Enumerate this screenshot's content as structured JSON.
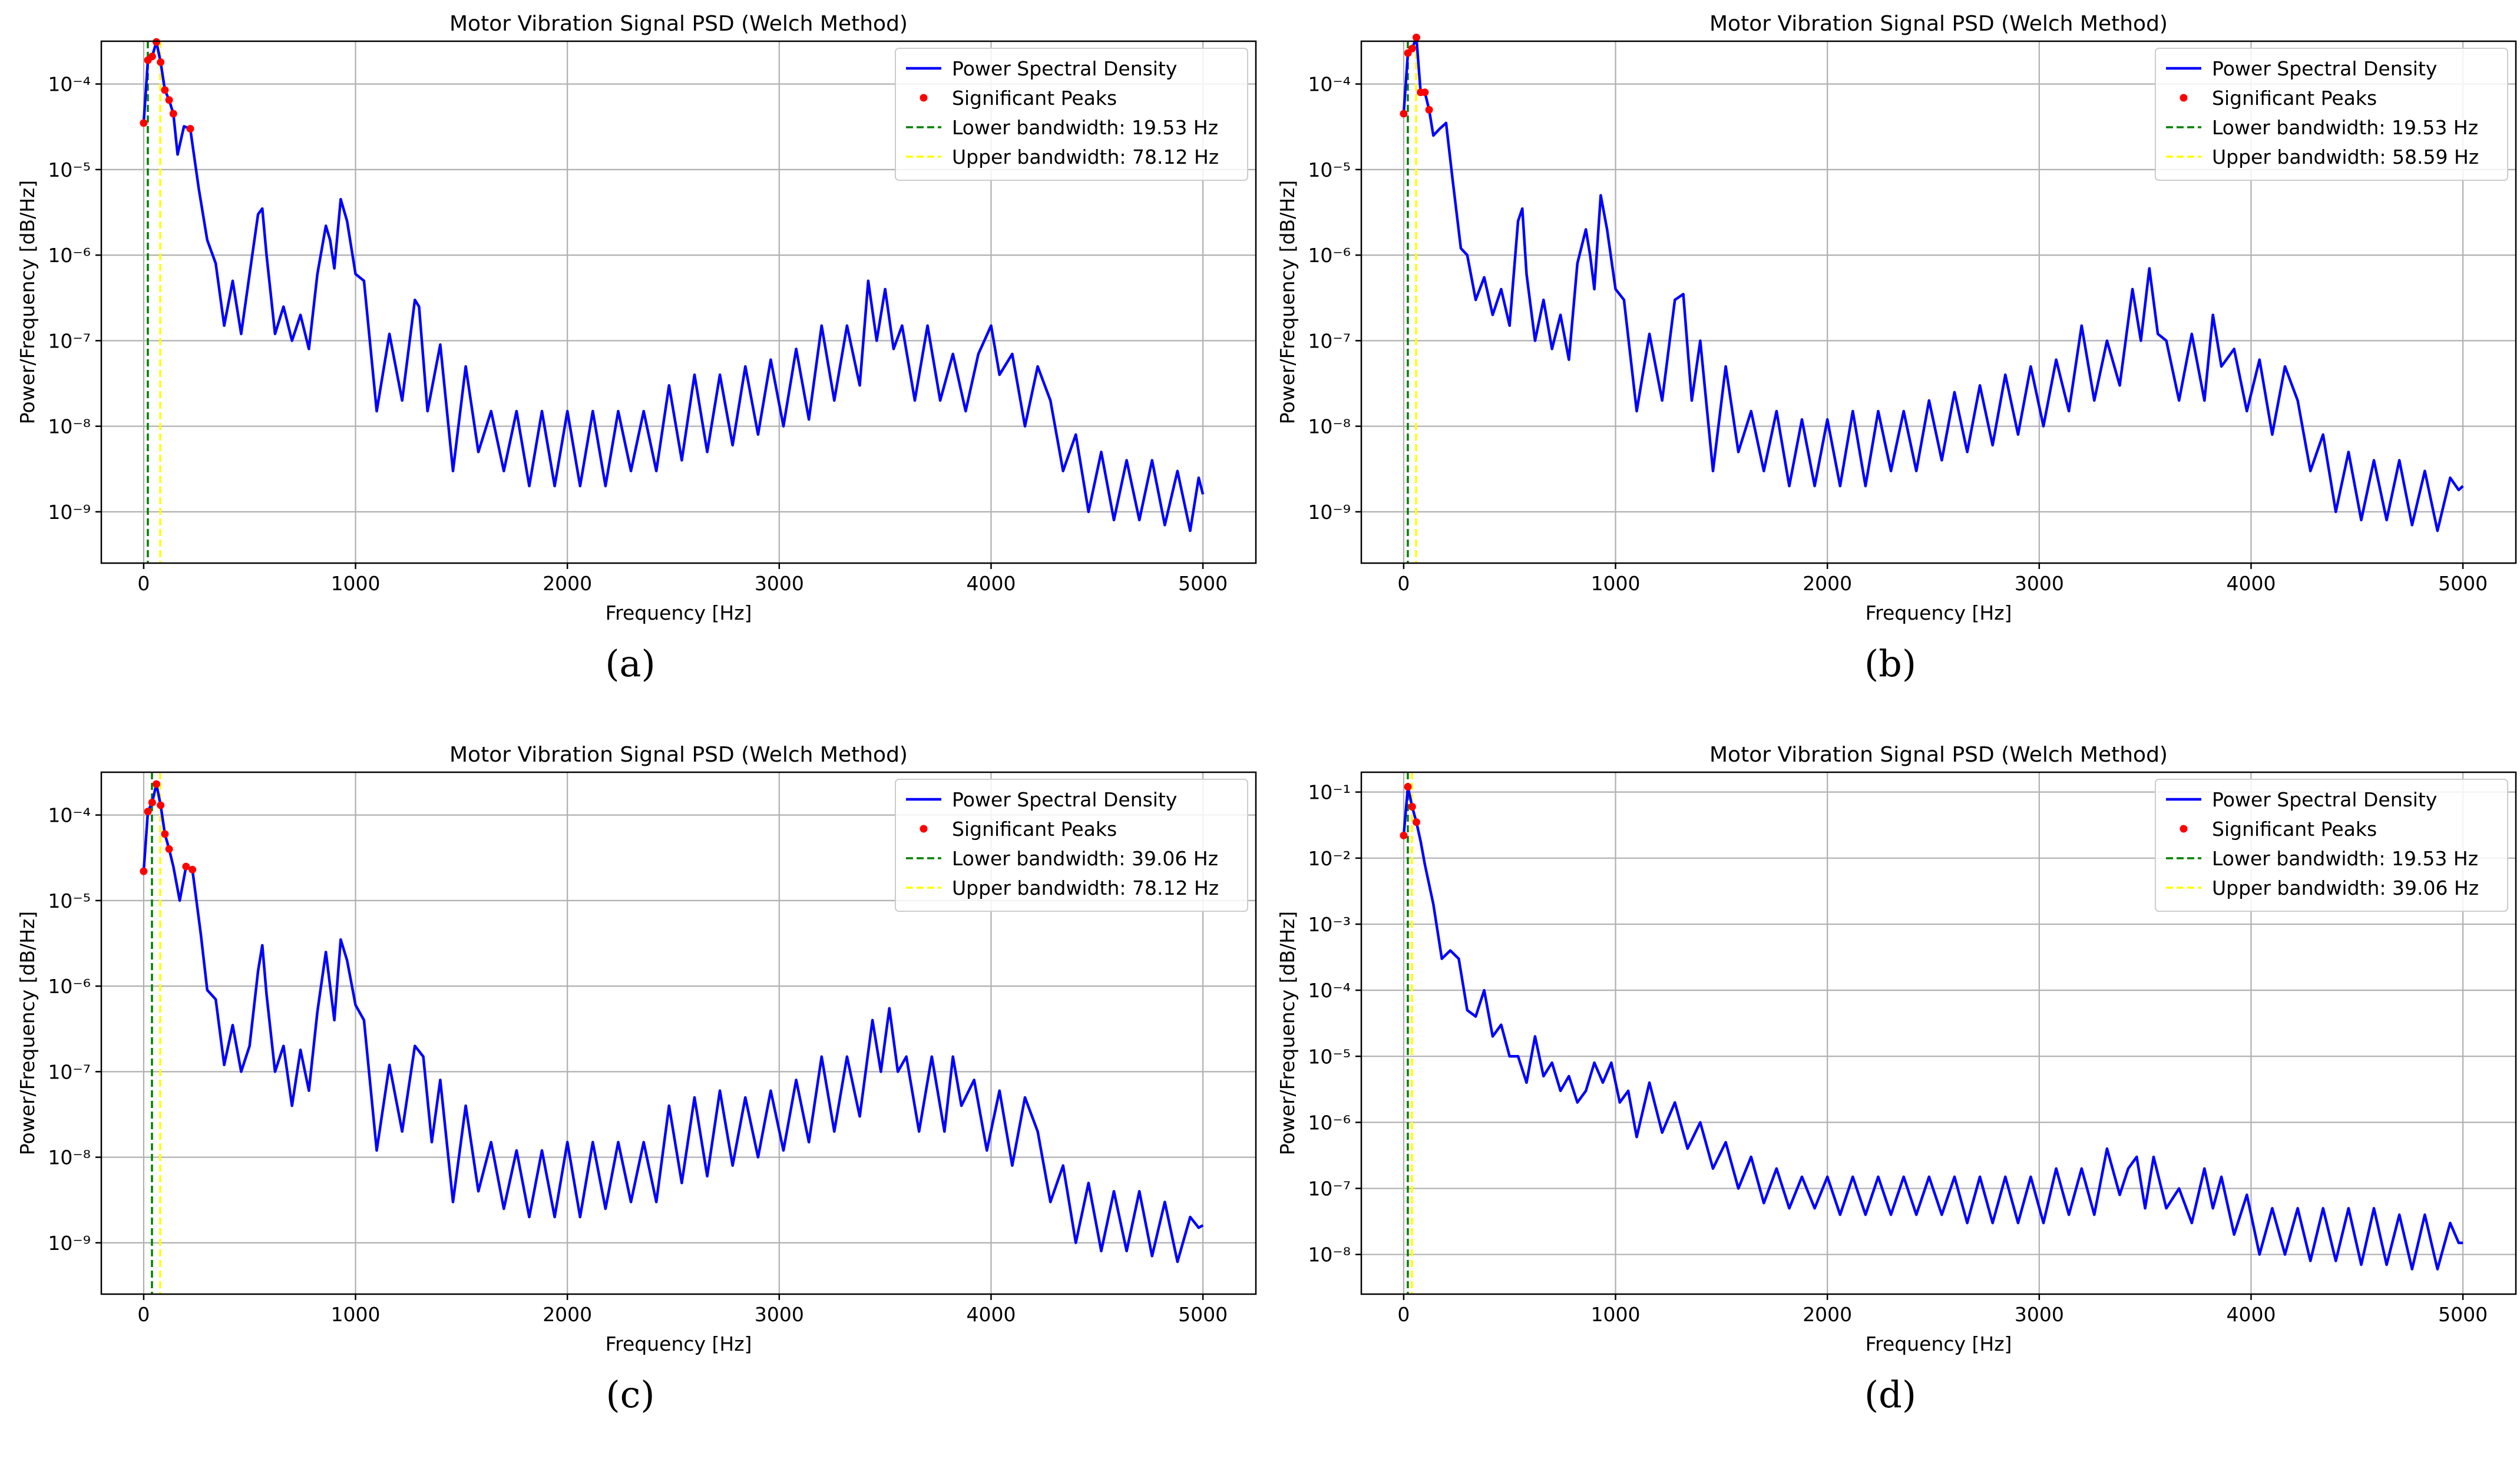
{
  "figure": {
    "colors": {
      "psd": "#0000ff",
      "peaks": "#ff0000",
      "lower_band": "#008000",
      "upper_band": "#ffff00",
      "grid": "#b0b0b0"
    }
  },
  "chart_data": [
    {
      "id": "a",
      "sub_label": "(a)",
      "type": "line",
      "yscale": "log",
      "title": "Motor Vibration Signal PSD (Welch Method)",
      "xlabel": "Frequency [Hz]",
      "ylabel": "Power/Frequency [dB/Hz]",
      "xlim": [
        -200,
        5250
      ],
      "ylim_exp": [
        -9.6,
        -3.5
      ],
      "xticks": [
        0,
        1000,
        2000,
        3000,
        4000,
        5000
      ],
      "xtick_labels": [
        "0",
        "1000",
        "2000",
        "3000",
        "4000",
        "5000"
      ],
      "yticks_exp": [
        -4,
        -5,
        -6,
        -7,
        -8,
        -9
      ],
      "legend": {
        "position": "upper right",
        "psd": "Power Spectral Density",
        "peaks": "Significant Peaks",
        "lower": "Lower bandwidth: 19.53 Hz",
        "upper": "Upper bandwidth: 78.12 Hz"
      },
      "lower_bandwidth_hz": 19.53,
      "upper_bandwidth_hz": 78.12,
      "series": {
        "name": "Power Spectral Density",
        "freq_hz": [
          0,
          20,
          40,
          60,
          80,
          100,
          120,
          140,
          160,
          190,
          220,
          260,
          300,
          340,
          380,
          420,
          460,
          500,
          540,
          560,
          580,
          620,
          660,
          700,
          740,
          780,
          820,
          860,
          880,
          900,
          930,
          960,
          1000,
          1040,
          1100,
          1160,
          1220,
          1280,
          1300,
          1340,
          1400,
          1460,
          1520,
          1580,
          1640,
          1700,
          1760,
          1820,
          1880,
          1940,
          2000,
          2060,
          2120,
          2180,
          2240,
          2300,
          2360,
          2420,
          2480,
          2540,
          2600,
          2660,
          2720,
          2780,
          2840,
          2900,
          2960,
          3020,
          3080,
          3140,
          3200,
          3260,
          3320,
          3380,
          3420,
          3460,
          3500,
          3540,
          3580,
          3640,
          3700,
          3760,
          3820,
          3880,
          3940,
          4000,
          4040,
          4100,
          4160,
          4220,
          4280,
          4340,
          4400,
          4460,
          4520,
          4580,
          4640,
          4700,
          4760,
          4820,
          4880,
          4940,
          4980,
          5000
        ],
        "psd": [
          3.5e-05,
          0.00019,
          0.00021,
          0.00031,
          0.00018,
          8.5e-05,
          6.5e-05,
          4.5e-05,
          1.5e-05,
          3.2e-05,
          3e-05,
          6e-06,
          1.5e-06,
          8e-07,
          1.5e-07,
          5e-07,
          1.2e-07,
          6e-07,
          3e-06,
          3.5e-06,
          1e-06,
          1.2e-07,
          2.5e-07,
          1e-07,
          2e-07,
          8e-08,
          6e-07,
          2.2e-06,
          1.5e-06,
          7e-07,
          4.5e-06,
          2.5e-06,
          6e-07,
          5e-07,
          1.5e-08,
          1.2e-07,
          2e-08,
          3e-07,
          2.5e-07,
          1.5e-08,
          9e-08,
          3e-09,
          5e-08,
          5e-09,
          1.5e-08,
          3e-09,
          1.5e-08,
          2e-09,
          1.5e-08,
          2e-09,
          1.5e-08,
          2e-09,
          1.5e-08,
          2e-09,
          1.5e-08,
          3e-09,
          1.5e-08,
          3e-09,
          3e-08,
          4e-09,
          4e-08,
          5e-09,
          4e-08,
          6e-09,
          5e-08,
          8e-09,
          6e-08,
          1e-08,
          8e-08,
          1.2e-08,
          1.5e-07,
          2e-08,
          1.5e-07,
          3e-08,
          5e-07,
          1e-07,
          4e-07,
          8e-08,
          1.5e-07,
          2e-08,
          1.5e-07,
          2e-08,
          7e-08,
          1.5e-08,
          7e-08,
          1.5e-07,
          4e-08,
          7e-08,
          1e-08,
          5e-08,
          2e-08,
          3e-09,
          8e-09,
          1e-09,
          5e-09,
          8e-10,
          4e-09,
          8e-10,
          4e-09,
          7e-10,
          3e-09,
          6e-10,
          2.5e-09,
          1.6e-09
        ]
      },
      "peaks": {
        "name": "Significant Peaks",
        "freq_hz": [
          0,
          20,
          40,
          60,
          80,
          100,
          120,
          140,
          220
        ],
        "psd": [
          3.5e-05,
          0.00019,
          0.00021,
          0.00031,
          0.00018,
          8.5e-05,
          6.5e-05,
          4.5e-05,
          3e-05
        ]
      }
    },
    {
      "id": "b",
      "sub_label": "(b)",
      "type": "line",
      "yscale": "log",
      "title": "Motor Vibration Signal PSD (Welch Method)",
      "xlabel": "Frequency [Hz]",
      "ylabel": "Power/Frequency [dB/Hz]",
      "xlim": [
        -200,
        5250
      ],
      "ylim_exp": [
        -9.6,
        -3.5
      ],
      "xticks": [
        0,
        1000,
        2000,
        3000,
        4000,
        5000
      ],
      "xtick_labels": [
        "0",
        "1000",
        "2000",
        "3000",
        "4000",
        "5000"
      ],
      "yticks_exp": [
        -4,
        -5,
        -6,
        -7,
        -8,
        -9
      ],
      "legend": {
        "position": "upper right",
        "psd": "Power Spectral Density",
        "peaks": "Significant Peaks",
        "lower": "Lower bandwidth: 19.53 Hz",
        "upper": "Upper bandwidth: 58.59 Hz"
      },
      "lower_bandwidth_hz": 19.53,
      "upper_bandwidth_hz": 58.59,
      "series": {
        "name": "Power Spectral Density",
        "freq_hz": [
          0,
          20,
          40,
          60,
          80,
          100,
          120,
          140,
          170,
          200,
          230,
          270,
          300,
          340,
          380,
          420,
          460,
          500,
          540,
          560,
          580,
          620,
          660,
          700,
          740,
          780,
          820,
          860,
          880,
          900,
          930,
          960,
          1000,
          1040,
          1100,
          1160,
          1220,
          1280,
          1320,
          1360,
          1400,
          1460,
          1520,
          1580,
          1640,
          1700,
          1760,
          1820,
          1880,
          1940,
          2000,
          2060,
          2120,
          2180,
          2240,
          2300,
          2360,
          2420,
          2480,
          2540,
          2600,
          2660,
          2720,
          2780,
          2840,
          2900,
          2960,
          3020,
          3080,
          3140,
          3200,
          3260,
          3320,
          3380,
          3440,
          3480,
          3520,
          3560,
          3600,
          3660,
          3720,
          3780,
          3820,
          3860,
          3920,
          3980,
          4040,
          4100,
          4160,
          4220,
          4280,
          4340,
          4400,
          4460,
          4520,
          4580,
          4640,
          4700,
          4760,
          4820,
          4880,
          4940,
          4980,
          5000
        ],
        "psd": [
          4.5e-05,
          0.00023,
          0.00026,
          0.00035,
          8e-05,
          8e-05,
          5e-05,
          2.5e-05,
          3e-05,
          3.5e-05,
          8e-06,
          1.2e-06,
          1e-06,
          3e-07,
          5.5e-07,
          2e-07,
          4e-07,
          1.5e-07,
          2.5e-06,
          3.5e-06,
          6e-07,
          1e-07,
          3e-07,
          8e-08,
          2e-07,
          6e-08,
          8e-07,
          2e-06,
          1e-06,
          4e-07,
          5e-06,
          2e-06,
          4e-07,
          3e-07,
          1.5e-08,
          1.2e-07,
          2e-08,
          3e-07,
          3.5e-07,
          2e-08,
          1e-07,
          3e-09,
          5e-08,
          5e-09,
          1.5e-08,
          3e-09,
          1.5e-08,
          2e-09,
          1.2e-08,
          2e-09,
          1.2e-08,
          2e-09,
          1.5e-08,
          2e-09,
          1.5e-08,
          3e-09,
          1.5e-08,
          3e-09,
          2e-08,
          4e-09,
          2.5e-08,
          5e-09,
          3e-08,
          6e-09,
          4e-08,
          8e-09,
          5e-08,
          1e-08,
          6e-08,
          1.5e-08,
          1.5e-07,
          2e-08,
          1e-07,
          3e-08,
          4e-07,
          1e-07,
          7e-07,
          1.2e-07,
          1e-07,
          2e-08,
          1.2e-07,
          2e-08,
          2e-07,
          5e-08,
          8e-08,
          1.5e-08,
          6e-08,
          8e-09,
          5e-08,
          2e-08,
          3e-09,
          8e-09,
          1e-09,
          5e-09,
          8e-10,
          4e-09,
          8e-10,
          4e-09,
          7e-10,
          3e-09,
          6e-10,
          2.5e-09,
          1.8e-09,
          2e-09
        ]
      },
      "peaks": {
        "name": "Significant Peaks",
        "freq_hz": [
          0,
          20,
          40,
          60,
          80,
          100,
          120
        ],
        "psd": [
          4.5e-05,
          0.00023,
          0.00026,
          0.00035,
          8e-05,
          8e-05,
          5e-05
        ]
      }
    },
    {
      "id": "c",
      "sub_label": "(c)",
      "type": "line",
      "yscale": "log",
      "title": "Motor Vibration Signal PSD (Welch Method)",
      "xlabel": "Frequency [Hz]",
      "ylabel": "Power/Frequency [dB/Hz]",
      "xlim": [
        -200,
        5250
      ],
      "ylim_exp": [
        -9.6,
        -3.5
      ],
      "xticks": [
        0,
        1000,
        2000,
        3000,
        4000,
        5000
      ],
      "xtick_labels": [
        "0",
        "1000",
        "2000",
        "3000",
        "4000",
        "5000"
      ],
      "yticks_exp": [
        -4,
        -5,
        -6,
        -7,
        -8,
        -9
      ],
      "legend": {
        "position": "upper right",
        "psd": "Power Spectral Density",
        "peaks": "Significant Peaks",
        "lower": "Lower bandwidth: 39.06 Hz",
        "upper": "Upper bandwidth: 78.12 Hz"
      },
      "lower_bandwidth_hz": 39.06,
      "upper_bandwidth_hz": 78.12,
      "series": {
        "name": "Power Spectral Density",
        "freq_hz": [
          0,
          20,
          40,
          60,
          80,
          100,
          120,
          140,
          170,
          200,
          230,
          270,
          300,
          340,
          380,
          420,
          460,
          500,
          540,
          560,
          580,
          620,
          660,
          700,
          740,
          780,
          820,
          860,
          880,
          900,
          930,
          960,
          1000,
          1040,
          1100,
          1160,
          1220,
          1280,
          1320,
          1360,
          1400,
          1460,
          1520,
          1580,
          1640,
          1700,
          1760,
          1820,
          1880,
          1940,
          2000,
          2060,
          2120,
          2180,
          2240,
          2300,
          2360,
          2420,
          2480,
          2540,
          2600,
          2660,
          2720,
          2780,
          2840,
          2900,
          2960,
          3020,
          3080,
          3140,
          3200,
          3260,
          3320,
          3380,
          3440,
          3480,
          3520,
          3560,
          3600,
          3660,
          3720,
          3780,
          3820,
          3860,
          3920,
          3980,
          4040,
          4100,
          4160,
          4220,
          4280,
          4340,
          4400,
          4460,
          4520,
          4580,
          4640,
          4700,
          4760,
          4820,
          4880,
          4940,
          4980,
          5000
        ],
        "psd": [
          2.2e-05,
          0.00011,
          0.00014,
          0.00023,
          0.00013,
          6e-05,
          4e-05,
          2.5e-05,
          1e-05,
          2.5e-05,
          2.3e-05,
          4e-06,
          9e-07,
          7e-07,
          1.2e-07,
          3.5e-07,
          1e-07,
          2e-07,
          1.5e-06,
          3e-06,
          8e-07,
          1e-07,
          2e-07,
          4e-08,
          1.8e-07,
          6e-08,
          5e-07,
          2.5e-06,
          1e-06,
          4e-07,
          3.5e-06,
          2e-06,
          6e-07,
          4e-07,
          1.2e-08,
          1.2e-07,
          2e-08,
          2e-07,
          1.5e-07,
          1.5e-08,
          8e-08,
          3e-09,
          4e-08,
          4e-09,
          1.5e-08,
          2.5e-09,
          1.2e-08,
          2e-09,
          1.2e-08,
          2e-09,
          1.5e-08,
          2e-09,
          1.5e-08,
          2.5e-09,
          1.5e-08,
          3e-09,
          1.5e-08,
          3e-09,
          4e-08,
          5e-09,
          5e-08,
          6e-09,
          6e-08,
          8e-09,
          5e-08,
          1e-08,
          6e-08,
          1.2e-08,
          8e-08,
          1.5e-08,
          1.5e-07,
          2e-08,
          1.5e-07,
          3e-08,
          4e-07,
          1e-07,
          5.5e-07,
          1e-07,
          1.5e-07,
          2e-08,
          1.5e-07,
          2e-08,
          1.5e-07,
          4e-08,
          8e-08,
          1.2e-08,
          6e-08,
          8e-09,
          5e-08,
          2e-08,
          3e-09,
          8e-09,
          1e-09,
          5e-09,
          8e-10,
          4e-09,
          8e-10,
          4e-09,
          7e-10,
          3e-09,
          6e-10,
          2e-09,
          1.5e-09,
          1.6e-09
        ]
      },
      "peaks": {
        "name": "Significant Peaks",
        "freq_hz": [
          0,
          20,
          40,
          60,
          80,
          100,
          120,
          200,
          230
        ],
        "psd": [
          2.2e-05,
          0.00011,
          0.00014,
          0.00023,
          0.00013,
          6e-05,
          4e-05,
          2.5e-05,
          2.3e-05
        ]
      }
    },
    {
      "id": "d",
      "sub_label": "(d)",
      "type": "line",
      "yscale": "log",
      "title": "Motor Vibration Signal PSD (Welch Method)",
      "xlabel": "Frequency [Hz]",
      "ylabel": "Power/Frequency [dB/Hz]",
      "xlim": [
        -200,
        5250
      ],
      "ylim_exp": [
        -8.6,
        -0.7
      ],
      "xticks": [
        0,
        1000,
        2000,
        3000,
        4000,
        5000
      ],
      "xtick_labels": [
        "0",
        "1000",
        "2000",
        "3000",
        "4000",
        "5000"
      ],
      "yticks_exp": [
        -1,
        -2,
        -3,
        -4,
        -5,
        -6,
        -7,
        -8
      ],
      "legend": {
        "position": "upper right",
        "psd": "Power Spectral Density",
        "peaks": "Significant Peaks",
        "lower": "Lower bandwidth: 19.53 Hz",
        "upper": "Upper bandwidth: 39.06 Hz"
      },
      "lower_bandwidth_hz": 19.53,
      "upper_bandwidth_hz": 39.06,
      "series": {
        "name": "Power Spectral Density",
        "freq_hz": [
          0,
          20,
          40,
          60,
          80,
          100,
          140,
          180,
          220,
          260,
          300,
          340,
          380,
          420,
          460,
          500,
          540,
          580,
          620,
          660,
          700,
          740,
          780,
          820,
          860,
          900,
          940,
          980,
          1020,
          1060,
          1100,
          1160,
          1220,
          1280,
          1340,
          1400,
          1460,
          1520,
          1580,
          1640,
          1700,
          1760,
          1820,
          1880,
          1940,
          2000,
          2060,
          2120,
          2180,
          2240,
          2300,
          2360,
          2420,
          2480,
          2540,
          2600,
          2660,
          2720,
          2780,
          2840,
          2900,
          2960,
          3020,
          3080,
          3140,
          3200,
          3260,
          3320,
          3380,
          3420,
          3460,
          3500,
          3540,
          3600,
          3660,
          3720,
          3780,
          3820,
          3860,
          3920,
          3980,
          4040,
          4100,
          4160,
          4220,
          4280,
          4340,
          4400,
          4460,
          4520,
          4580,
          4640,
          4700,
          4760,
          4820,
          4880,
          4940,
          4980,
          5000
        ],
        "psd": [
          0.022,
          0.12,
          0.06,
          0.035,
          0.018,
          0.008,
          0.002,
          0.0003,
          0.0004,
          0.0003,
          5e-05,
          4e-05,
          0.0001,
          2e-05,
          3e-05,
          1e-05,
          1e-05,
          4e-06,
          2e-05,
          5e-06,
          8e-06,
          3e-06,
          5e-06,
          2e-06,
          3e-06,
          8e-06,
          4e-06,
          8e-06,
          2e-06,
          3e-06,
          6e-07,
          4e-06,
          7e-07,
          2e-06,
          4e-07,
          1e-06,
          2e-07,
          5e-07,
          1e-07,
          3e-07,
          6e-08,
          2e-07,
          5e-08,
          1.5e-07,
          5e-08,
          1.5e-07,
          4e-08,
          1.5e-07,
          4e-08,
          1.5e-07,
          4e-08,
          1.5e-07,
          4e-08,
          1.5e-07,
          4e-08,
          1.5e-07,
          3e-08,
          1.5e-07,
          3e-08,
          1.5e-07,
          3e-08,
          1.5e-07,
          3e-08,
          2e-07,
          4e-08,
          2e-07,
          4e-08,
          4e-07,
          8e-08,
          2e-07,
          3e-07,
          5e-08,
          3e-07,
          5e-08,
          1e-07,
          3e-08,
          2e-07,
          5e-08,
          1.5e-07,
          2e-08,
          8e-08,
          1e-08,
          5e-08,
          1e-08,
          5e-08,
          8e-09,
          5e-08,
          8e-09,
          5e-08,
          7e-09,
          5e-08,
          7e-09,
          4e-08,
          6e-09,
          4e-08,
          6e-09,
          3e-08,
          1.5e-08,
          1.5e-08
        ]
      },
      "peaks": {
        "name": "Significant Peaks",
        "freq_hz": [
          0,
          20,
          40,
          60
        ],
        "psd": [
          0.022,
          0.12,
          0.06,
          0.035
        ]
      }
    }
  ]
}
